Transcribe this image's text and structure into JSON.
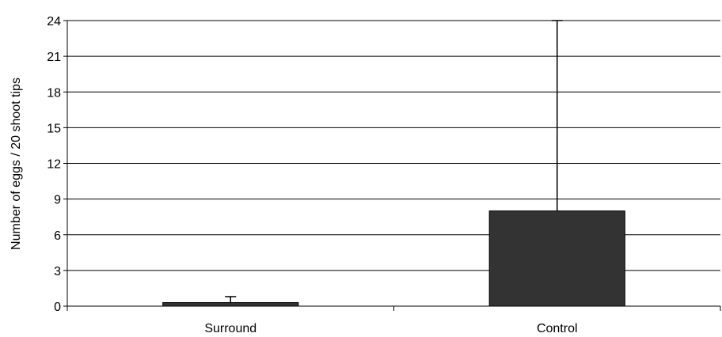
{
  "chart_data": {
    "type": "bar",
    "title": "",
    "xlabel": "",
    "ylabel": "Number of eggs / 20 shoot tips",
    "categories": [
      "Surround",
      "Control"
    ],
    "values": [
      0.3,
      8.0
    ],
    "error_upper": [
      0.8,
      24.0
    ],
    "ylim": [
      0,
      24
    ],
    "yticks": [
      0,
      3,
      6,
      9,
      12,
      15,
      18,
      21,
      24
    ],
    "grid": true,
    "legend": "none",
    "bar_color": "#333333"
  }
}
